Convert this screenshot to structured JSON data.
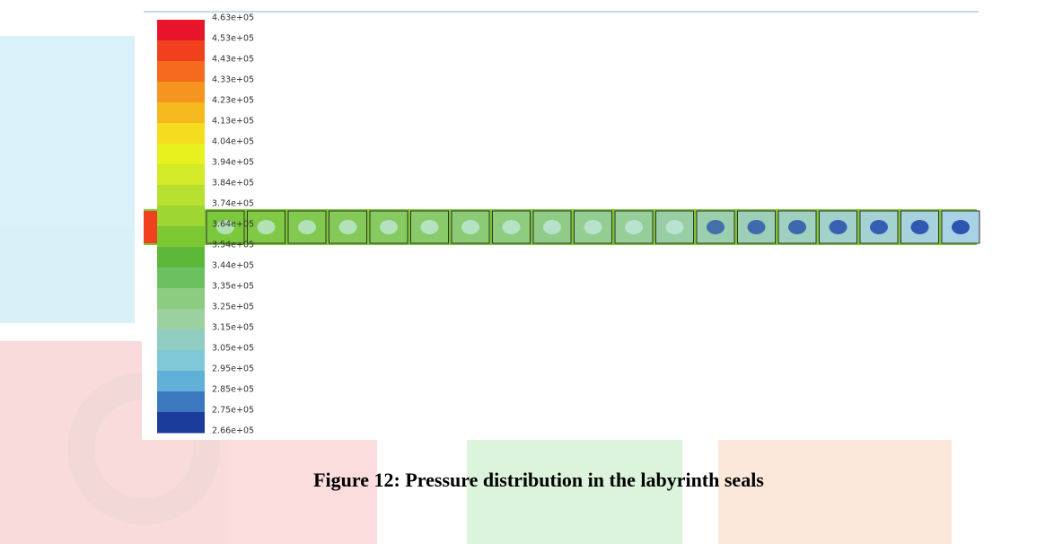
{
  "figure": {
    "colorbar_labels": [
      "4.63e+05",
      "4.53e+05",
      "4.43e+05",
      "4.33e+05",
      "4.23e+05",
      "4.13e+05",
      "4.04e+05",
      "3.94e+05",
      "3.84e+05",
      "3.74e+05",
      "3.64e+05",
      "3.54e+05",
      "3.44e+05",
      "3.35e+05",
      "3.25e+05",
      "3.15e+05",
      "3.05e+05",
      "2.95e+05",
      "2.85e+05",
      "2.75e+05",
      "2.66e+05"
    ],
    "caption": "Figure 12: Pressure distribution in the labyrinth seals"
  }
}
